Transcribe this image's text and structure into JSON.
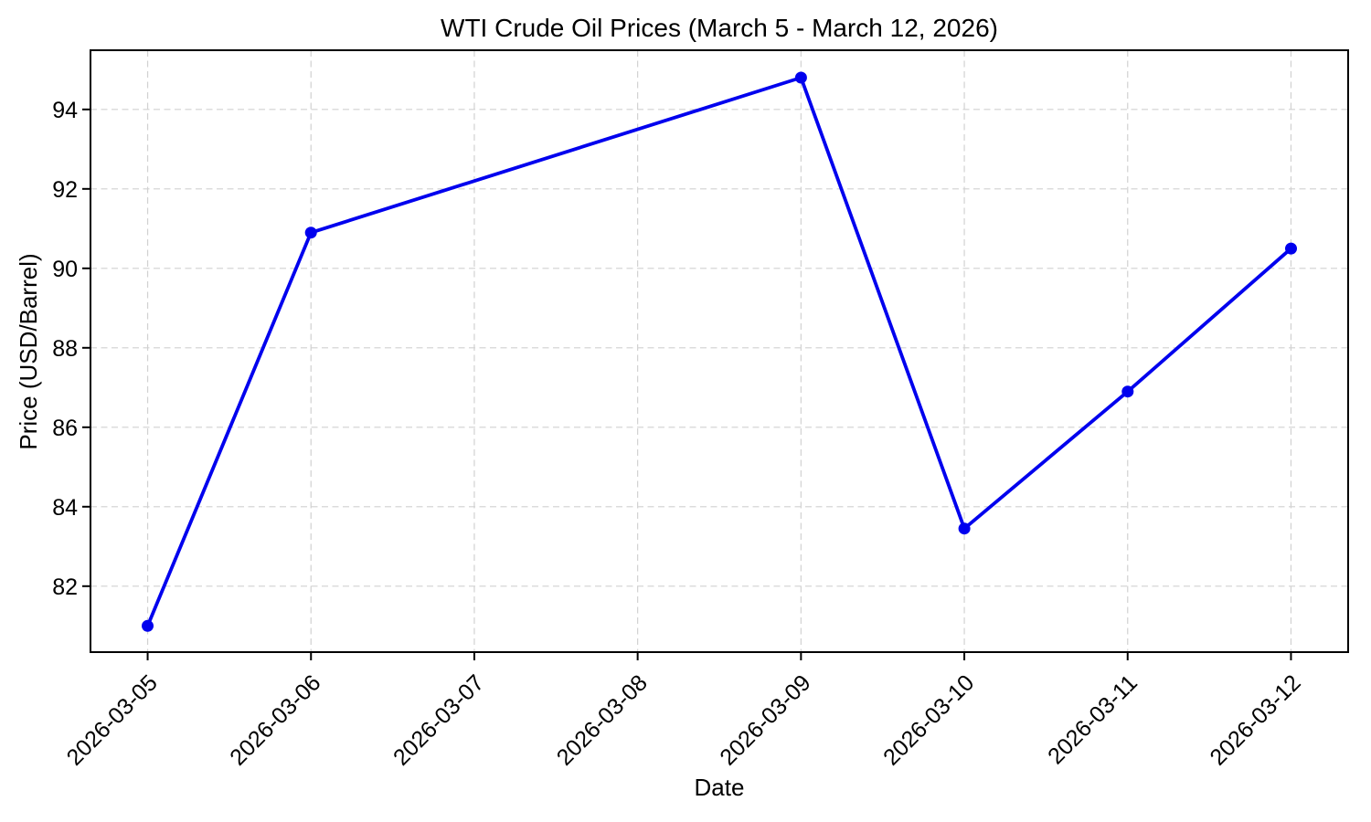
{
  "chart_data": {
    "type": "line",
    "title": "WTI Crude Oil Prices (March 5 - March 12, 2026)",
    "xlabel": "Date",
    "ylabel": "Price (USD/Barrel)",
    "x_tick_labels": [
      "2026-03-05",
      "2026-03-06",
      "2026-03-07",
      "2026-03-08",
      "2026-03-09",
      "2026-03-10",
      "2026-03-11",
      "2026-03-12"
    ],
    "y_ticks": [
      82,
      84,
      86,
      88,
      90,
      92,
      94
    ],
    "ylim": [
      80.34,
      95.49
    ],
    "grid": true,
    "grid_style": "dashed",
    "legend": false,
    "colors": {
      "line": "#0000ee",
      "marker": "#0000ee",
      "grid": "#d1d1d1",
      "spine": "#000000",
      "background": "#ffffff"
    },
    "series": [
      {
        "name": "WTI Crude Oil Price",
        "x": [
          "2026-03-05",
          "2026-03-06",
          "2026-03-09",
          "2026-03-10",
          "2026-03-11",
          "2026-03-12"
        ],
        "values": [
          81.0,
          90.9,
          94.8,
          83.45,
          86.9,
          90.5
        ]
      }
    ]
  }
}
